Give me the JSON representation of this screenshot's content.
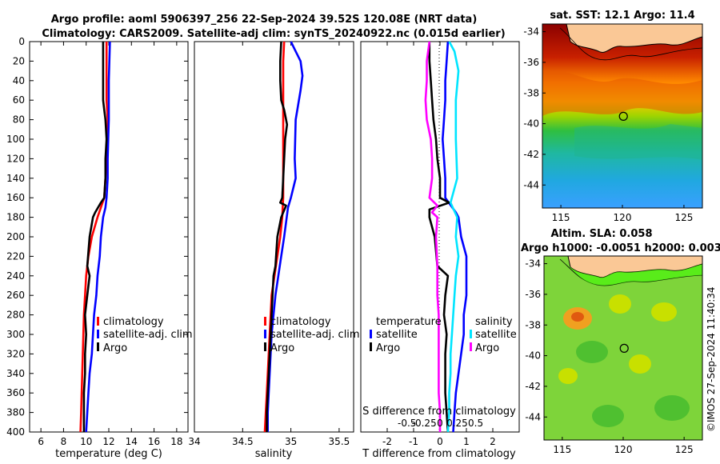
{
  "header": {
    "title_line1": "Argo profile: aoml 5906397_256 22-Sep-2024 39.52S 120.08E (NRT data)",
    "title_line2": "Climatology: CARS2009. Satellite-adj clim: synTS_20240922.nc (0.015d earlier)"
  },
  "footer": {
    "stamp": "©IMOS 27-Sep-2024 11:40:34"
  },
  "colors": {
    "climatology": "#ff0000",
    "satellite": "#0000ff",
    "argo": "#000000",
    "salinity_sat": "#00e5ff",
    "salinity_argo": "#ff00ff"
  },
  "chart_data": [
    {
      "id": "temperature",
      "type": "line",
      "xlabel": "temperature (deg C)",
      "ylabel": "",
      "xlim": [
        5,
        19
      ],
      "ylim": [
        400,
        0
      ],
      "xticks": [
        "6",
        "8",
        "10",
        "12",
        "14",
        "16",
        "18"
      ],
      "xtick_values": [
        6,
        8,
        10,
        12,
        14,
        16,
        18
      ],
      "yticks": [
        "0",
        "20",
        "40",
        "60",
        "80",
        "100",
        "120",
        "140",
        "160",
        "180",
        "200",
        "220",
        "240",
        "260",
        "280",
        "300",
        "320",
        "340",
        "360",
        "380",
        "400"
      ],
      "legend": [
        "climatology",
        "satellite-adj. clim",
        "Argo"
      ],
      "series": [
        {
          "name": "climatology",
          "color": "#ff0000",
          "points": [
            [
              11.8,
              0
            ],
            [
              11.8,
              20
            ],
            [
              11.8,
              40
            ],
            [
              11.8,
              60
            ],
            [
              11.9,
              80
            ],
            [
              11.9,
              100
            ],
            [
              11.8,
              120
            ],
            [
              11.7,
              140
            ],
            [
              11.6,
              160
            ],
            [
              11.0,
              180
            ],
            [
              10.5,
              200
            ],
            [
              10.2,
              220
            ],
            [
              10.0,
              240
            ],
            [
              9.9,
              260
            ],
            [
              9.8,
              280
            ],
            [
              9.75,
              300
            ],
            [
              9.7,
              320
            ],
            [
              9.65,
              340
            ],
            [
              9.6,
              360
            ],
            [
              9.55,
              380
            ],
            [
              9.5,
              400
            ]
          ]
        },
        {
          "name": "satellite-adj. clim",
          "color": "#0000ff",
          "points": [
            [
              12.1,
              0
            ],
            [
              12.05,
              20
            ],
            [
              12.0,
              40
            ],
            [
              12.0,
              60
            ],
            [
              12.0,
              80
            ],
            [
              11.95,
              100
            ],
            [
              11.9,
              120
            ],
            [
              11.9,
              140
            ],
            [
              11.8,
              160
            ],
            [
              11.7,
              170
            ],
            [
              11.5,
              180
            ],
            [
              11.3,
              200
            ],
            [
              11.2,
              220
            ],
            [
              11.0,
              240
            ],
            [
              10.9,
              260
            ],
            [
              10.7,
              280
            ],
            [
              10.6,
              300
            ],
            [
              10.5,
              320
            ],
            [
              10.3,
              340
            ],
            [
              10.2,
              360
            ],
            [
              10.1,
              380
            ],
            [
              10.0,
              400
            ]
          ]
        },
        {
          "name": "Argo",
          "color": "#000000",
          "points": [
            [
              11.5,
              0
            ],
            [
              11.5,
              20
            ],
            [
              11.5,
              40
            ],
            [
              11.5,
              60
            ],
            [
              11.6,
              70
            ],
            [
              11.7,
              80
            ],
            [
              11.8,
              100
            ],
            [
              11.7,
              120
            ],
            [
              11.7,
              140
            ],
            [
              11.6,
              160
            ],
            [
              11.3,
              165
            ],
            [
              10.8,
              175
            ],
            [
              10.6,
              180
            ],
            [
              10.3,
              200
            ],
            [
              10.1,
              230
            ],
            [
              10.3,
              240
            ],
            [
              10.1,
              260
            ],
            [
              9.9,
              280
            ],
            [
              10.0,
              300
            ],
            [
              9.9,
              320
            ],
            [
              9.9,
              340
            ],
            [
              9.8,
              360
            ],
            [
              9.8,
              380
            ],
            [
              9.8,
              400
            ]
          ]
        }
      ]
    },
    {
      "id": "salinity",
      "type": "line",
      "xlabel": "salinity",
      "ylabel": "",
      "xlim": [
        34,
        35.65
      ],
      "ylim": [
        400,
        0
      ],
      "xticks": [
        "34",
        "34.5",
        "35",
        "35.5"
      ],
      "xtick_values": [
        34,
        34.5,
        35,
        35.5
      ],
      "legend": [
        "climatology",
        "satellite-adj. clim",
        "Argo"
      ],
      "series": [
        {
          "name": "climatology",
          "color": "#ff0000",
          "points": [
            [
              34.93,
              0
            ],
            [
              34.92,
              20
            ],
            [
              34.92,
              40
            ],
            [
              34.92,
              60
            ],
            [
              34.92,
              80
            ],
            [
              34.92,
              100
            ],
            [
              34.92,
              120
            ],
            [
              34.92,
              140
            ],
            [
              34.92,
              160
            ],
            [
              34.91,
              180
            ],
            [
              34.89,
              200
            ],
            [
              34.86,
              220
            ],
            [
              34.83,
              240
            ],
            [
              34.8,
              260
            ],
            [
              34.79,
              280
            ],
            [
              34.78,
              300
            ],
            [
              34.77,
              320
            ],
            [
              34.76,
              340
            ],
            [
              34.75,
              360
            ],
            [
              34.74,
              380
            ],
            [
              34.73,
              400
            ]
          ]
        },
        {
          "name": "satellite-adj. clim",
          "color": "#0000ff",
          "points": [
            [
              35.0,
              0
            ],
            [
              35.05,
              10
            ],
            [
              35.1,
              20
            ],
            [
              35.12,
              35
            ],
            [
              35.1,
              50
            ],
            [
              35.05,
              80
            ],
            [
              35.04,
              120
            ],
            [
              35.05,
              140
            ],
            [
              35.0,
              160
            ],
            [
              34.97,
              170
            ],
            [
              34.95,
              185
            ],
            [
              34.93,
              200
            ],
            [
              34.9,
              220
            ],
            [
              34.87,
              240
            ],
            [
              34.84,
              260
            ],
            [
              34.82,
              280
            ],
            [
              34.8,
              300
            ],
            [
              34.79,
              320
            ],
            [
              34.78,
              340
            ],
            [
              34.77,
              360
            ],
            [
              34.76,
              380
            ],
            [
              34.76,
              400
            ]
          ]
        },
        {
          "name": "Argo",
          "color": "#000000",
          "points": [
            [
              34.9,
              0
            ],
            [
              34.89,
              20
            ],
            [
              34.89,
              40
            ],
            [
              34.9,
              60
            ],
            [
              34.93,
              70
            ],
            [
              34.96,
              85
            ],
            [
              34.94,
              100
            ],
            [
              34.93,
              120
            ],
            [
              34.92,
              140
            ],
            [
              34.91,
              160
            ],
            [
              34.89,
              165
            ],
            [
              34.95,
              168
            ],
            [
              34.9,
              180
            ],
            [
              34.88,
              190
            ],
            [
              34.86,
              200
            ],
            [
              34.84,
              230
            ],
            [
              34.82,
              240
            ],
            [
              34.81,
              260
            ],
            [
              34.8,
              280
            ],
            [
              34.79,
              300
            ],
            [
              34.78,
              320
            ],
            [
              34.77,
              340
            ],
            [
              34.76,
              360
            ],
            [
              34.75,
              380
            ],
            [
              34.75,
              400
            ]
          ]
        }
      ]
    },
    {
      "id": "difference",
      "type": "line",
      "xlabel": "T difference from climatology",
      "xlabel_top": "S difference from climatology",
      "xlim": [
        -3,
        3
      ],
      "ylim": [
        400,
        0
      ],
      "xticks": [
        "-2",
        "-1",
        "0",
        "1",
        "2"
      ],
      "xtick_values": [
        -2,
        -1,
        0,
        1,
        2
      ],
      "top_ticks": [
        "-0.5",
        "-0.25",
        "0",
        "0.25",
        "0.5"
      ],
      "top_tick_values": [
        -1.25,
        -0.6,
        0,
        0.65,
        1.35
      ],
      "legend_left": [
        "temperature",
        "satellite",
        "Argo"
      ],
      "legend_right": [
        "salinity",
        "satellite",
        "Argo"
      ],
      "series": [
        {
          "name": "T satellite",
          "color": "#0000ff",
          "points": [
            [
              0.3,
              0
            ],
            [
              0.25,
              20
            ],
            [
              0.2,
              40
            ],
            [
              0.2,
              60
            ],
            [
              0.15,
              80
            ],
            [
              0.1,
              100
            ],
            [
              0.15,
              120
            ],
            [
              0.2,
              140
            ],
            [
              0.2,
              160
            ],
            [
              0.6,
              175
            ],
            [
              0.7,
              180
            ],
            [
              0.8,
              200
            ],
            [
              1.0,
              220
            ],
            [
              1.0,
              240
            ],
            [
              1.0,
              260
            ],
            [
              0.9,
              280
            ],
            [
              0.9,
              300
            ],
            [
              0.8,
              320
            ],
            [
              0.7,
              340
            ],
            [
              0.6,
              360
            ],
            [
              0.55,
              380
            ],
            [
              0.5,
              400
            ]
          ]
        },
        {
          "name": "T Argo",
          "color": "#000000",
          "points": [
            [
              -0.4,
              0
            ],
            [
              -0.4,
              20
            ],
            [
              -0.35,
              40
            ],
            [
              -0.3,
              60
            ],
            [
              -0.25,
              80
            ],
            [
              -0.15,
              100
            ],
            [
              -0.1,
              120
            ],
            [
              0.0,
              140
            ],
            [
              0.0,
              160
            ],
            [
              0.35,
              165
            ],
            [
              -0.4,
              172
            ],
            [
              -0.4,
              180
            ],
            [
              -0.2,
              200
            ],
            [
              -0.1,
              230
            ],
            [
              0.3,
              240
            ],
            [
              0.2,
              260
            ],
            [
              0.15,
              280
            ],
            [
              0.25,
              300
            ],
            [
              0.2,
              320
            ],
            [
              0.2,
              340
            ],
            [
              0.2,
              360
            ],
            [
              0.25,
              380
            ],
            [
              0.3,
              400
            ]
          ]
        },
        {
          "name": "S satellite",
          "color": "#00e5ff",
          "points": [
            [
              0.35,
              0
            ],
            [
              0.55,
              10
            ],
            [
              0.7,
              30
            ],
            [
              0.6,
              60
            ],
            [
              0.6,
              100
            ],
            [
              0.65,
              140
            ],
            [
              0.4,
              165
            ],
            [
              0.65,
              180
            ],
            [
              0.6,
              200
            ],
            [
              0.7,
              220
            ],
            [
              0.6,
              240
            ],
            [
              0.55,
              260
            ],
            [
              0.5,
              280
            ],
            [
              0.45,
              300
            ],
            [
              0.4,
              320
            ],
            [
              0.4,
              340
            ],
            [
              0.35,
              360
            ],
            [
              0.35,
              380
            ],
            [
              0.3,
              400
            ]
          ]
        },
        {
          "name": "S Argo",
          "color": "#ff00ff",
          "points": [
            [
              -0.4,
              0
            ],
            [
              -0.5,
              20
            ],
            [
              -0.5,
              40
            ],
            [
              -0.55,
              60
            ],
            [
              -0.5,
              80
            ],
            [
              -0.35,
              100
            ],
            [
              -0.3,
              120
            ],
            [
              -0.3,
              140
            ],
            [
              -0.4,
              160
            ],
            [
              -0.1,
              168
            ],
            [
              -0.3,
              175
            ],
            [
              -0.1,
              180
            ],
            [
              -0.15,
              200
            ],
            [
              -0.1,
              230
            ],
            [
              -0.1,
              260
            ],
            [
              -0.05,
              280
            ],
            [
              -0.05,
              300
            ],
            [
              -0.05,
              320
            ],
            [
              -0.05,
              340
            ],
            [
              -0.05,
              360
            ],
            [
              0.0,
              380
            ],
            [
              0.0,
              400
            ]
          ]
        }
      ]
    },
    {
      "id": "sst_map",
      "type": "heatmap",
      "title": "sat. SST: 12.1 Argo: 11.4",
      "xticks": [
        "115",
        "120",
        "125"
      ],
      "xtick_values": [
        115,
        120,
        125
      ],
      "yticks": [
        "-34",
        "-36",
        "-38",
        "-40",
        "-42",
        "-44"
      ],
      "ytick_values": [
        -34,
        -36,
        -38,
        -40,
        -42,
        -44
      ],
      "xlim": [
        113.5,
        126.5
      ],
      "ylim": [
        -45.5,
        -33.5
      ],
      "marker": [
        120.08,
        -39.52
      ]
    },
    {
      "id": "sla_map",
      "type": "heatmap",
      "title": "Altim. SLA: 0.058",
      "subtitle": "Argo h1000: -0.0051 h2000: 0.003",
      "xticks": [
        "115",
        "120",
        "125"
      ],
      "xtick_values": [
        115,
        120,
        125
      ],
      "yticks": [
        "-34",
        "-36",
        "-38",
        "-40",
        "-42",
        "-44"
      ],
      "ytick_values": [
        -34,
        -36,
        -38,
        -40,
        -42,
        -44
      ],
      "xlim": [
        113.5,
        126.5
      ],
      "ylim": [
        -45.5,
        -33.5
      ],
      "marker": [
        120.08,
        -39.52
      ]
    }
  ]
}
